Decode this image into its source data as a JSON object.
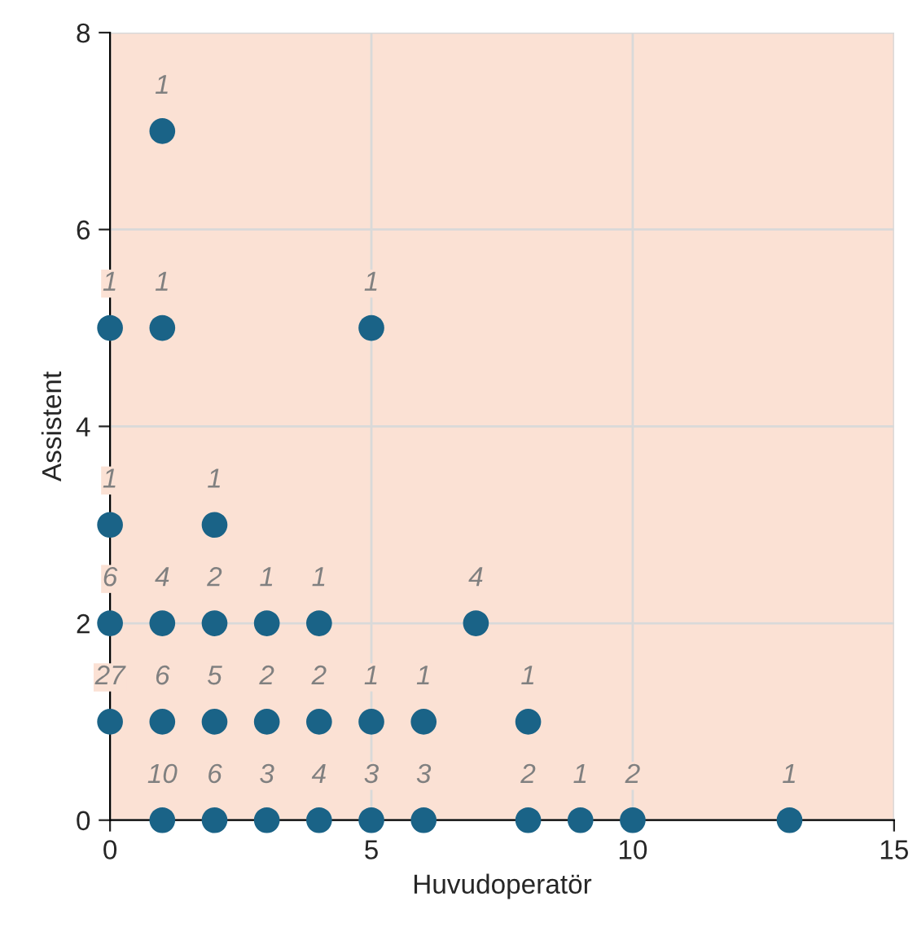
{
  "chart_data": {
    "type": "scatter",
    "xlabel": "Huvudoperatör",
    "ylabel": "Assistent",
    "series": [
      {
        "color": "#1a6387",
        "x": [
          1,
          2,
          3,
          4,
          5,
          6,
          8,
          9,
          10,
          13,
          0,
          1,
          2,
          3,
          4,
          5,
          6,
          8,
          0,
          1,
          2,
          3,
          4,
          7,
          0,
          2,
          0,
          1,
          5,
          1
        ],
        "values": [
          0,
          0,
          0,
          0,
          0,
          0,
          0,
          0,
          0,
          0,
          1,
          1,
          1,
          1,
          1,
          1,
          1,
          1,
          2,
          2,
          2,
          2,
          2,
          2,
          3,
          3,
          5,
          5,
          5,
          7
        ]
      }
    ],
    "annotations": [
      {
        "text": "10",
        "x": 1,
        "y": 0
      },
      {
        "text": "6",
        "x": 2,
        "y": 0
      },
      {
        "text": "3",
        "x": 3,
        "y": 0
      },
      {
        "text": "4",
        "x": 4,
        "y": 0
      },
      {
        "text": "3",
        "x": 5,
        "y": 0
      },
      {
        "text": "3",
        "x": 6,
        "y": 0
      },
      {
        "text": "2",
        "x": 8,
        "y": 0
      },
      {
        "text": "1",
        "x": 9,
        "y": 0
      },
      {
        "text": "2",
        "x": 10,
        "y": 0
      },
      {
        "text": "1",
        "x": 13,
        "y": 0
      },
      {
        "text": "27",
        "x": 0,
        "y": 1
      },
      {
        "text": "6",
        "x": 1,
        "y": 1
      },
      {
        "text": "5",
        "x": 2,
        "y": 1
      },
      {
        "text": "2",
        "x": 3,
        "y": 1
      },
      {
        "text": "2",
        "x": 4,
        "y": 1
      },
      {
        "text": "1",
        "x": 5,
        "y": 1
      },
      {
        "text": "1",
        "x": 6,
        "y": 1
      },
      {
        "text": "1",
        "x": 8,
        "y": 1
      },
      {
        "text": "6",
        "x": 0,
        "y": 2
      },
      {
        "text": "4",
        "x": 1,
        "y": 2
      },
      {
        "text": "2",
        "x": 2,
        "y": 2
      },
      {
        "text": "1",
        "x": 3,
        "y": 2
      },
      {
        "text": "1",
        "x": 4,
        "y": 2
      },
      {
        "text": "4",
        "x": 7,
        "y": 2
      },
      {
        "text": "1",
        "x": 0,
        "y": 3
      },
      {
        "text": "1",
        "x": 2,
        "y": 3
      },
      {
        "text": "1",
        "x": 0,
        "y": 5
      },
      {
        "text": "1",
        "x": 1,
        "y": 5
      },
      {
        "text": "1",
        "x": 5,
        "y": 5
      },
      {
        "text": "1",
        "x": 1,
        "y": 7
      }
    ],
    "xlim": [
      0,
      15
    ],
    "xticks": [
      0,
      5,
      10,
      15
    ],
    "ylim": [
      0,
      8
    ],
    "yticks": [
      0,
      2,
      4,
      6,
      8
    ],
    "grid": true,
    "marker": "circle",
    "legend": false
  }
}
